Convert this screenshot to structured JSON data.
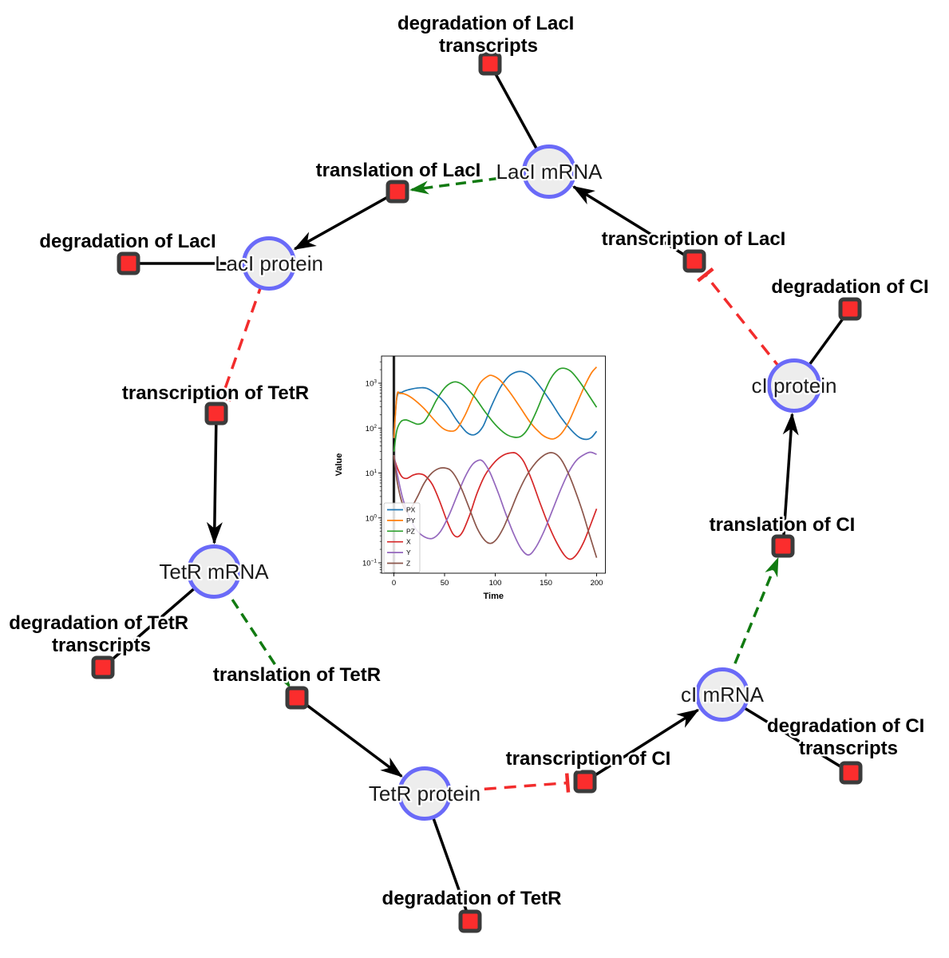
{
  "figure": {
    "description": "Repressilator gene regulatory network with simulation inset"
  },
  "colors": {
    "species_fill": "#ededed",
    "species_border": "#6a6af8",
    "reaction_fill": "#fb2d2d",
    "reaction_border": "#3b3b3b",
    "edge_black": "#000000",
    "activation_green": "#117a11",
    "inhibition_red": "#f22c2c"
  },
  "diagram": {
    "species": [
      {
        "id": "laci-mrna",
        "label": "LacI mRNA"
      },
      {
        "id": "laci-protein",
        "label": "LacI protein"
      },
      {
        "id": "tetr-mrna",
        "label": "TetR mRNA"
      },
      {
        "id": "tetr-protein",
        "label": "TetR protein"
      },
      {
        "id": "ci-mrna",
        "label": "cI mRNA"
      },
      {
        "id": "ci-protein",
        "label": "cI protein"
      }
    ],
    "reactions": [
      {
        "id": "degradation-laci-transcripts",
        "label": "degradation of LacI transcripts",
        "lines": [
          "degradation of LacI",
          "transcripts"
        ]
      },
      {
        "id": "translation-laci",
        "label": "translation of LacI",
        "lines": [
          "translation of LacI"
        ]
      },
      {
        "id": "degradation-laci",
        "label": "degradation of LacI",
        "lines": [
          "degradation of LacI"
        ]
      },
      {
        "id": "transcription-laci",
        "label": "transcription of LacI",
        "lines": [
          "transcription of LacI"
        ]
      },
      {
        "id": "degradation-ci",
        "label": "degradation of CI",
        "lines": [
          "degradation of CI"
        ]
      },
      {
        "id": "transcription-tetr",
        "label": "transcription of TetR",
        "lines": [
          "transcription of TetR"
        ]
      },
      {
        "id": "translation-ci",
        "label": "translation of CI",
        "lines": [
          "translation of CI"
        ]
      },
      {
        "id": "degradation-tetr-transcripts",
        "label": "degradation of TetR transcripts",
        "lines": [
          "degradation of TetR",
          "transcripts"
        ]
      },
      {
        "id": "translation-tetr",
        "label": "translation of TetR",
        "lines": [
          "translation of TetR"
        ]
      },
      {
        "id": "transcription-ci",
        "label": "transcription of CI",
        "lines": [
          "transcription of CI"
        ]
      },
      {
        "id": "degradation-ci-transcripts",
        "label": "degradation of CI",
        "lines": [
          "degradation of CI",
          "transcripts"
        ]
      },
      {
        "id": "degradation-tetr",
        "label": "degradation of TetR",
        "lines": [
          "degradation of TetR"
        ]
      }
    ]
  },
  "chart_data": {
    "type": "line",
    "title": "",
    "xlabel": "Time",
    "ylabel": "Value",
    "x_ticks": [
      0,
      50,
      100,
      150,
      200
    ],
    "xlim": [
      -12,
      208
    ],
    "y_scale": "log",
    "ylim_log10": [
      -1.23,
      3.6
    ],
    "y_ticks_log10": [
      -1,
      0,
      1,
      2,
      3
    ],
    "grid": false,
    "legend_position": "lower left",
    "event_line_x": 0,
    "series": [
      {
        "name": "PX",
        "color": "#1f77b4",
        "points": [
          [
            0,
            60
          ],
          [
            3,
            480
          ],
          [
            8,
            630
          ],
          [
            15,
            720
          ],
          [
            25,
            790
          ],
          [
            33,
            760
          ],
          [
            42,
            560
          ],
          [
            52,
            330
          ],
          [
            62,
            150
          ],
          [
            72,
            80
          ],
          [
            80,
            72
          ],
          [
            88,
            110
          ],
          [
            96,
            300
          ],
          [
            105,
            800
          ],
          [
            113,
            1400
          ],
          [
            120,
            1750
          ],
          [
            127,
            1800
          ],
          [
            135,
            1450
          ],
          [
            145,
            800
          ],
          [
            155,
            380
          ],
          [
            165,
            170
          ],
          [
            175,
            90
          ],
          [
            183,
            62
          ],
          [
            190,
            56
          ],
          [
            195,
            62
          ],
          [
            200,
            85
          ]
        ]
      },
      {
        "name": "PY",
        "color": "#ff7f0e",
        "points": [
          [
            0,
            60
          ],
          [
            3,
            520
          ],
          [
            6,
            590
          ],
          [
            12,
            560
          ],
          [
            20,
            430
          ],
          [
            30,
            270
          ],
          [
            40,
            150
          ],
          [
            48,
            100
          ],
          [
            55,
            86
          ],
          [
            62,
            95
          ],
          [
            70,
            190
          ],
          [
            78,
            480
          ],
          [
            85,
            1000
          ],
          [
            92,
            1400
          ],
          [
            97,
            1480
          ],
          [
            105,
            1150
          ],
          [
            115,
            600
          ],
          [
            125,
            280
          ],
          [
            135,
            130
          ],
          [
            145,
            75
          ],
          [
            152,
            60
          ],
          [
            158,
            58
          ],
          [
            165,
            75
          ],
          [
            172,
            130
          ],
          [
            180,
            330
          ],
          [
            188,
            850
          ],
          [
            195,
            1700
          ],
          [
            200,
            2300
          ]
        ]
      },
      {
        "name": "PZ",
        "color": "#2ca02c",
        "points": [
          [
            0,
            30
          ],
          [
            3,
            90
          ],
          [
            7,
            140
          ],
          [
            12,
            152
          ],
          [
            18,
            135
          ],
          [
            24,
            122
          ],
          [
            30,
            140
          ],
          [
            36,
            230
          ],
          [
            42,
            420
          ],
          [
            50,
            780
          ],
          [
            57,
            1030
          ],
          [
            63,
            1050
          ],
          [
            70,
            850
          ],
          [
            80,
            480
          ],
          [
            90,
            230
          ],
          [
            100,
            120
          ],
          [
            110,
            75
          ],
          [
            118,
            63
          ],
          [
            125,
            65
          ],
          [
            132,
            95
          ],
          [
            140,
            220
          ],
          [
            148,
            600
          ],
          [
            155,
            1300
          ],
          [
            162,
            2000
          ],
          [
            168,
            2150
          ],
          [
            175,
            1800
          ],
          [
            183,
            1100
          ],
          [
            192,
            550
          ],
          [
            200,
            290
          ]
        ]
      },
      {
        "name": "X",
        "color": "#d62728",
        "points": [
          [
            0,
            22
          ],
          [
            4,
            12
          ],
          [
            8,
            8.2
          ],
          [
            13,
            7.6
          ],
          [
            19,
            9
          ],
          [
            25,
            9.6
          ],
          [
            31,
            8.6
          ],
          [
            38,
            5.5
          ],
          [
            45,
            2.4
          ],
          [
            52,
            0.9
          ],
          [
            58,
            0.45
          ],
          [
            63,
            0.38
          ],
          [
            68,
            0.5
          ],
          [
            75,
            1.2
          ],
          [
            82,
            3.5
          ],
          [
            90,
            9
          ],
          [
            100,
            18
          ],
          [
            108,
            25
          ],
          [
            115,
            28
          ],
          [
            121,
            27
          ],
          [
            128,
            18
          ],
          [
            136,
            7
          ],
          [
            144,
            2.2
          ],
          [
            152,
            0.75
          ],
          [
            160,
            0.3
          ],
          [
            168,
            0.15
          ],
          [
            174,
            0.12
          ],
          [
            180,
            0.15
          ],
          [
            187,
            0.28
          ],
          [
            194,
            0.7
          ],
          [
            200,
            1.6
          ]
        ]
      },
      {
        "name": "Y",
        "color": "#9467bd",
        "points": [
          [
            0,
            25
          ],
          [
            4,
            8
          ],
          [
            9,
            2.6
          ],
          [
            15,
            1.1
          ],
          [
            22,
            0.55
          ],
          [
            30,
            0.38
          ],
          [
            38,
            0.35
          ],
          [
            46,
            0.5
          ],
          [
            54,
            1.1
          ],
          [
            62,
            3
          ],
          [
            70,
            8
          ],
          [
            77,
            15
          ],
          [
            83,
            19
          ],
          [
            88,
            18
          ],
          [
            95,
            10
          ],
          [
            103,
            3.6
          ],
          [
            110,
            1.3
          ],
          [
            118,
            0.45
          ],
          [
            126,
            0.2
          ],
          [
            133,
            0.15
          ],
          [
            140,
            0.22
          ],
          [
            148,
            0.5
          ],
          [
            156,
            1.4
          ],
          [
            164,
            4
          ],
          [
            172,
            10
          ],
          [
            180,
            19
          ],
          [
            188,
            26
          ],
          [
            194,
            29
          ],
          [
            200,
            26
          ]
        ]
      },
      {
        "name": "Z",
        "color": "#8c564b",
        "points": [
          [
            0,
            25
          ],
          [
            3,
            7
          ],
          [
            8,
            2.2
          ],
          [
            13,
            1.4
          ],
          [
            18,
            1.8
          ],
          [
            24,
            3.2
          ],
          [
            30,
            6
          ],
          [
            37,
            9.8
          ],
          [
            44,
            12.5
          ],
          [
            50,
            13
          ],
          [
            56,
            11.5
          ],
          [
            62,
            7.5
          ],
          [
            68,
            3.8
          ],
          [
            75,
            1.5
          ],
          [
            82,
            0.6
          ],
          [
            89,
            0.33
          ],
          [
            95,
            0.27
          ],
          [
            101,
            0.33
          ],
          [
            108,
            0.6
          ],
          [
            115,
            1.4
          ],
          [
            122,
            3.4
          ],
          [
            130,
            8
          ],
          [
            138,
            15
          ],
          [
            146,
            23
          ],
          [
            153,
            28
          ],
          [
            159,
            27
          ],
          [
            165,
            20
          ],
          [
            172,
            10
          ],
          [
            179,
            4
          ],
          [
            186,
            1.4
          ],
          [
            192,
            0.5
          ],
          [
            198,
            0.18
          ],
          [
            200,
            0.13
          ]
        ]
      }
    ]
  }
}
